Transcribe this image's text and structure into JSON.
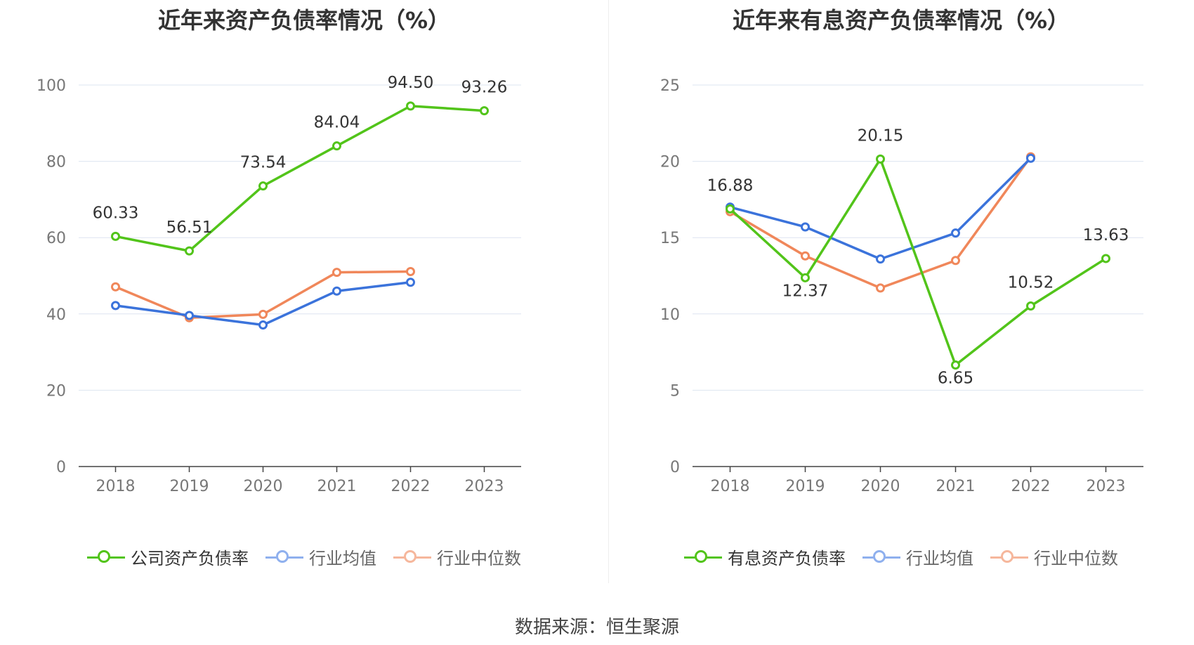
{
  "colors": {
    "company": "#52c41a",
    "industry_avg": "#3b73db",
    "industry_median": "#f0875a",
    "grid": "#dde4f0",
    "axis": "#444444"
  },
  "source": "数据来源：恒生聚源",
  "charts": [
    {
      "title": "近年来资产负债率情况（%）",
      "legend": [
        "公司资产负债率",
        "行业均值",
        "行业中位数"
      ],
      "y_ticks": [
        "0",
        "20",
        "40",
        "60",
        "80",
        "100"
      ],
      "x_ticks": [
        "2018",
        "2019",
        "2020",
        "2021",
        "2022",
        "2023"
      ],
      "value_labels": [
        "60.33",
        "56.51",
        "73.54",
        "84.04",
        "94.50",
        "93.26"
      ]
    },
    {
      "title": "近年来有息资产负债率情况（%）",
      "legend": [
        "有息资产负债率",
        "行业均值",
        "行业中位数"
      ],
      "y_ticks": [
        "0",
        "5",
        "10",
        "15",
        "20",
        "25"
      ],
      "x_ticks": [
        "2018",
        "2019",
        "2020",
        "2021",
        "2022",
        "2023"
      ],
      "value_labels": [
        "16.88",
        "12.37",
        "20.15",
        "6.65",
        "10.52",
        "13.63"
      ]
    }
  ],
  "chart_data": [
    {
      "type": "line",
      "title": "近年来资产负债率情况（%）",
      "categories": [
        "2018",
        "2019",
        "2020",
        "2021",
        "2022",
        "2023"
      ],
      "ylim": [
        0,
        100
      ],
      "grid": true,
      "legend_position": "bottom",
      "series": [
        {
          "name": "公司资产负债率",
          "color": "#52c41a",
          "values": [
            60.33,
            56.51,
            73.54,
            84.04,
            94.5,
            93.26
          ]
        },
        {
          "name": "行业均值",
          "color": "#3b73db",
          "values": [
            42.2,
            39.6,
            37.1,
            46.0,
            48.3,
            null
          ]
        },
        {
          "name": "行业中位数",
          "color": "#f0875a",
          "values": [
            47.1,
            39.0,
            39.9,
            50.9,
            51.1,
            null
          ]
        }
      ]
    },
    {
      "type": "line",
      "title": "近年来有息资产负债率情况（%）",
      "categories": [
        "2018",
        "2019",
        "2020",
        "2021",
        "2022",
        "2023"
      ],
      "ylim": [
        0,
        25
      ],
      "grid": true,
      "legend_position": "bottom",
      "series": [
        {
          "name": "有息资产负债率",
          "color": "#52c41a",
          "values": [
            16.88,
            12.37,
            20.15,
            6.65,
            10.52,
            13.63
          ]
        },
        {
          "name": "行业均值",
          "color": "#3b73db",
          "values": [
            17.0,
            15.7,
            13.6,
            15.3,
            20.2,
            null
          ]
        },
        {
          "name": "行业中位数",
          "color": "#f0875a",
          "values": [
            16.7,
            13.8,
            11.7,
            13.5,
            20.3,
            null
          ]
        }
      ]
    }
  ]
}
